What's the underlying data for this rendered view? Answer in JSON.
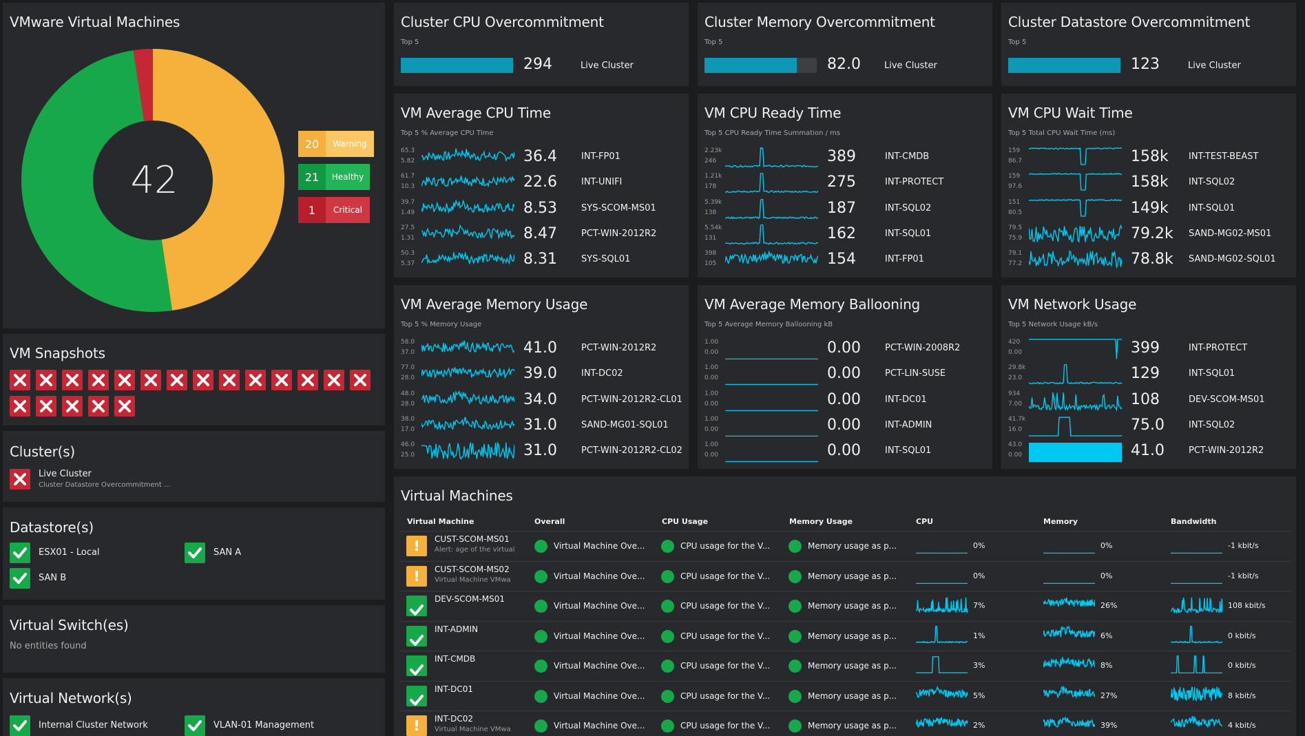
{
  "colors": {
    "warning": "#f5b13c",
    "healthy": "#17a84a",
    "critical": "#c52734",
    "accent": "#00c8f0"
  },
  "vms": {
    "title": "VMware Virtual Machines",
    "total": "42",
    "legend": [
      {
        "count": "20",
        "label": "Warning",
        "color": "#f5b13c"
      },
      {
        "count": "21",
        "label": "Healthy",
        "color": "#17a84a"
      },
      {
        "count": "1",
        "label": "Critical",
        "color": "#c52734"
      }
    ]
  },
  "snapshots": {
    "title": "VM Snapshots",
    "count": 19,
    "icon": "critical-x-icon"
  },
  "clusters": {
    "title": "Cluster(s)",
    "items": [
      {
        "name": "Live Cluster",
        "sub": "Cluster Datastore Overcommitment ..."
      }
    ]
  },
  "datastores": {
    "title": "Datastore(s)",
    "items": [
      "ESX01 - Local",
      "SAN A",
      "SAN B"
    ]
  },
  "vswitches": {
    "title": "Virtual Switch(es)",
    "empty": "No entities found"
  },
  "vnetworks": {
    "title": "Virtual Network(s)",
    "items": [
      "Internal Cluster Network",
      "VLAN-01 Management"
    ]
  },
  "overcommit": [
    {
      "title": "Cluster CPU Overcommitment",
      "sub": "Top 5",
      "value": "294",
      "fill": 1.0,
      "entity": "Live Cluster"
    },
    {
      "title": "Cluster Memory Overcommitment",
      "sub": "Top 5",
      "value": "82.0",
      "fill": 0.82,
      "entity": "Live Cluster"
    },
    {
      "title": "Cluster Datastore Overcommitment",
      "sub": "Top 5",
      "value": "123",
      "fill": 1.0,
      "entity": "Live Cluster"
    }
  ],
  "sparktiles": [
    {
      "title": "VM Average CPU Time",
      "sub": "Top 5 % Average CPU Time",
      "rows": [
        {
          "max": "65.3",
          "min": "5.82",
          "value": "36.4",
          "name": "INT-FP01",
          "shape": "noisy"
        },
        {
          "max": "61.7",
          "min": "10.3",
          "value": "22.6",
          "name": "INT-UNIFI",
          "shape": "noisy"
        },
        {
          "max": "39.7",
          "min": "1.49",
          "value": "8.53",
          "name": "SYS-SCOM-MS01",
          "shape": "noisy"
        },
        {
          "max": "27.5",
          "min": "1.31",
          "value": "8.47",
          "name": "PCT-WIN-2012R2",
          "shape": "noisy"
        },
        {
          "max": "50.3",
          "min": "5.37",
          "value": "8.31",
          "name": "SYS-SQL01",
          "shape": "noisy"
        }
      ]
    },
    {
      "title": "VM CPU Ready Time",
      "sub": "Top 5 CPU Ready Time Summation / ms",
      "rows": [
        {
          "max": "2.23k",
          "min": "246",
          "value": "389",
          "name": "INT-CMDB",
          "shape": "spike"
        },
        {
          "max": "1.21k",
          "min": "178",
          "value": "275",
          "name": "INT-PROTECT",
          "shape": "spike"
        },
        {
          "max": "5.39k",
          "min": "138",
          "value": "187",
          "name": "INT-SQL02",
          "shape": "spike"
        },
        {
          "max": "5.54k",
          "min": "131",
          "value": "162",
          "name": "INT-SQL01",
          "shape": "spike"
        },
        {
          "max": "398",
          "min": "105",
          "value": "154",
          "name": "INT-FP01",
          "shape": "noisy"
        }
      ]
    },
    {
      "title": "VM CPU Wait Time",
      "sub": "Top 5 Total CPU Wait Time (ms)",
      "rows": [
        {
          "max": "159",
          "min": "86.7",
          "value": "158k",
          "name": "INT-TEST-BEAST",
          "shape": "dip"
        },
        {
          "max": "159",
          "min": "97.6",
          "value": "158k",
          "name": "INT-SQL02",
          "shape": "dip"
        },
        {
          "max": "151",
          "min": "80.5",
          "value": "149k",
          "name": "INT-SQL01",
          "shape": "dip"
        },
        {
          "max": "79.5",
          "min": "75.9",
          "value": "79.2k",
          "name": "SAND-MG02-MS01",
          "shape": "dense"
        },
        {
          "max": "79.1",
          "min": "77.2",
          "value": "78.8k",
          "name": "SAND-MG02-SQL01",
          "shape": "dense"
        }
      ]
    },
    {
      "title": "VM Average Memory Usage",
      "sub": "Top 5 % Memory Usage",
      "rows": [
        {
          "max": "58.0",
          "min": "37.0",
          "value": "41.0",
          "name": "PCT-WIN-2012R2",
          "shape": "noisy"
        },
        {
          "max": "77.0",
          "min": "28.0",
          "value": "39.0",
          "name": "INT-DC02",
          "shape": "noisy"
        },
        {
          "max": "48.0",
          "min": "28.0",
          "value": "34.0",
          "name": "PCT-WIN-2012R2-CL01",
          "shape": "noisy"
        },
        {
          "max": "38.0",
          "min": "17.0",
          "value": "31.0",
          "name": "SAND-MG01-SQL01",
          "shape": "noisy"
        },
        {
          "max": "46.0",
          "min": "25.0",
          "value": "31.0",
          "name": "PCT-WIN-2012R2-CL02",
          "shape": "dense"
        }
      ]
    },
    {
      "title": "VM Average Memory Ballooning",
      "sub": "Top 5 Average Memory Ballooning kB",
      "rows": [
        {
          "max": "1.00",
          "min": "0.00",
          "value": "0.00",
          "name": "PCT-WIN-2008R2",
          "shape": "flat"
        },
        {
          "max": "1.00",
          "min": "0.00",
          "value": "0.00",
          "name": "PCT-LIN-SUSE",
          "shape": "flat"
        },
        {
          "max": "1.00",
          "min": "0.00",
          "value": "0.00",
          "name": "INT-DC01",
          "shape": "flat"
        },
        {
          "max": "1.00",
          "min": "0.00",
          "value": "0.00",
          "name": "INT-ADMIN",
          "shape": "flat"
        },
        {
          "max": "1.00",
          "min": "0.00",
          "value": "0.00",
          "name": "INT-SQL01",
          "shape": "flat"
        }
      ]
    },
    {
      "title": "VM Network Usage",
      "sub": "Top 5 Network Usage kB/s",
      "rows": [
        {
          "max": "420",
          "min": "0.00",
          "value": "399",
          "name": "INT-PROTECT",
          "shape": "topdrop"
        },
        {
          "max": "29.8k",
          "min": "23.0",
          "value": "129",
          "name": "INT-SQL01",
          "shape": "spike"
        },
        {
          "max": "934",
          "min": "7.00",
          "value": "108",
          "name": "DEV-SCOM-MS01",
          "shape": "spiky"
        },
        {
          "max": "41.7k",
          "min": "16.0",
          "value": "75.0",
          "name": "INT-SQL02",
          "shape": "block"
        },
        {
          "max": "43.0",
          "min": "0.00",
          "value": "41.0",
          "name": "PCT-WIN-2012R2",
          "shape": "fill"
        }
      ]
    }
  ],
  "vmtable": {
    "title": "Virtual Machines",
    "headers": [
      "Virtual Machine",
      "Overall",
      "CPU Usage",
      "Memory Usage",
      "CPU",
      "Memory",
      "Bandwidth"
    ],
    "rows": [
      {
        "status": "warning",
        "name": "CUST-SCOM-MS01",
        "sub": "Alert: age of the virtual",
        "overall": "Virtual Machine Ove...",
        "cpuusage": "CPU usage for the V...",
        "memusage": "Memory usage as p...",
        "cpu": "0%",
        "mem": "0%",
        "bw": "-1 kbit/s",
        "cpuShape": "flat",
        "memShape": "flat",
        "bwShape": "flat"
      },
      {
        "status": "warning",
        "name": "CUST-SCOM-MS02",
        "sub": "Virtual Machine VMwa",
        "overall": "Virtual Machine Ove...",
        "cpuusage": "CPU usage for the V...",
        "memusage": "Memory usage as p...",
        "cpu": "0%",
        "mem": "0%",
        "bw": "-1 kbit/s",
        "cpuShape": "flat",
        "memShape": "flat",
        "bwShape": "flat"
      },
      {
        "status": "healthy",
        "name": "DEV-SCOM-MS01",
        "sub": "",
        "overall": "Virtual Machine Ove...",
        "cpuusage": "CPU usage for the V...",
        "memusage": "Memory usage as p...",
        "cpu": "7%",
        "mem": "26%",
        "bw": "108 kbit/s",
        "cpuShape": "spiky",
        "memShape": "noisy",
        "bwShape": "spiky"
      },
      {
        "status": "healthy",
        "name": "INT-ADMIN",
        "sub": "",
        "overall": "Virtual Machine Ove...",
        "cpuusage": "CPU usage for the V...",
        "memusage": "Memory usage as p...",
        "cpu": "1%",
        "mem": "6%",
        "bw": "0 kbit/s",
        "cpuShape": "spike",
        "memShape": "noisy",
        "bwShape": "spike"
      },
      {
        "status": "healthy",
        "name": "INT-CMDB",
        "sub": "",
        "overall": "Virtual Machine Ove...",
        "cpuusage": "CPU usage for the V...",
        "memusage": "Memory usage as p...",
        "cpu": "3%",
        "mem": "8%",
        "bw": "0 kbit/s",
        "cpuShape": "block",
        "memShape": "noisy",
        "bwShape": "pulses"
      },
      {
        "status": "healthy",
        "name": "INT-DC01",
        "sub": "",
        "overall": "Virtual Machine Ove...",
        "cpuusage": "CPU usage for the V...",
        "memusage": "Memory usage as p...",
        "cpu": "5%",
        "mem": "27%",
        "bw": "8 kbit/s",
        "cpuShape": "noisy",
        "memShape": "noisy",
        "bwShape": "dense"
      },
      {
        "status": "warning",
        "name": "INT-DC02",
        "sub": "Virtual Machine VMwa",
        "overall": "Virtual Machine Ove...",
        "cpuusage": "CPU usage for the V...",
        "memusage": "Memory usage as p...",
        "cpu": "2%",
        "mem": "39%",
        "bw": "4 kbit/s",
        "cpuShape": "noisy",
        "memShape": "noisy",
        "bwShape": "noisy"
      }
    ]
  }
}
